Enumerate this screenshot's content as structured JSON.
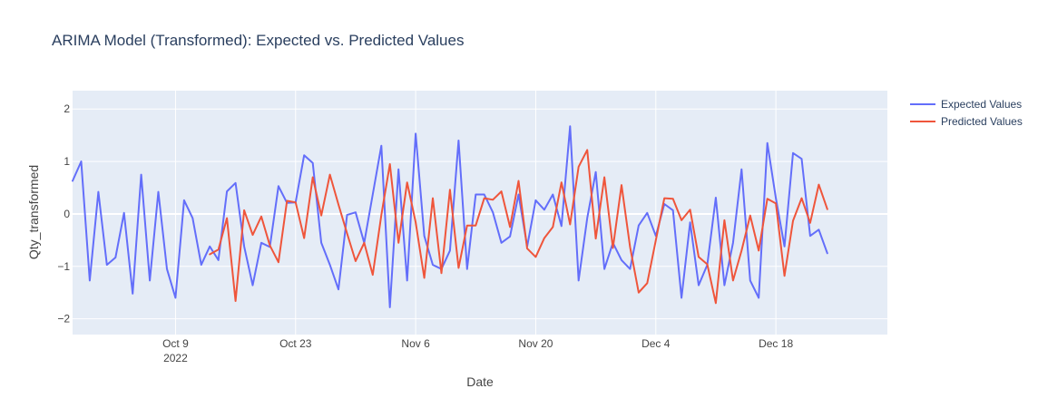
{
  "chart_data": {
    "type": "line",
    "title": "ARIMA Model (Transformed): Expected vs. Predicted Values",
    "xlabel": "Date",
    "ylabel": "Qty_transformed",
    "xlim": [
      "2022-09-27",
      "2022-12-31"
    ],
    "ylim": [
      -2.3,
      2.35
    ],
    "x_ticks": [
      {
        "date": "2022-10-09",
        "label": "Oct 9",
        "sublabel": "2022"
      },
      {
        "date": "2022-10-23",
        "label": "Oct 23",
        "sublabel": ""
      },
      {
        "date": "2022-11-06",
        "label": "Nov 6",
        "sublabel": ""
      },
      {
        "date": "2022-11-20",
        "label": "Nov 20",
        "sublabel": ""
      },
      {
        "date": "2022-12-04",
        "label": "Dec 4",
        "sublabel": ""
      },
      {
        "date": "2022-12-18",
        "label": "Dec 18",
        "sublabel": ""
      }
    ],
    "y_ticks": [
      {
        "value": 2,
        "label": "2"
      },
      {
        "value": 1,
        "label": "1"
      },
      {
        "value": 0,
        "label": "0"
      },
      {
        "value": -1,
        "label": "−1"
      },
      {
        "value": -2,
        "label": "−2"
      }
    ],
    "grid": true,
    "legend_position": "top-right",
    "colors": {
      "plot_bg": "#e5ecf6",
      "grid": "#ffffff",
      "expected": "#636efa",
      "predicted": "#ef553b",
      "title": "#2a3f5f",
      "tick": "#444444"
    },
    "series": [
      {
        "name": "Expected Values",
        "color": "#636efa",
        "points": [
          [
            "2022-09-27",
            0.63
          ],
          [
            "2022-09-28",
            1.0
          ],
          [
            "2022-09-29",
            -1.27
          ],
          [
            "2022-09-30",
            0.42
          ],
          [
            "2022-10-01",
            -0.97
          ],
          [
            "2022-10-02",
            -0.83
          ],
          [
            "2022-10-03",
            0.02
          ],
          [
            "2022-10-04",
            -1.52
          ],
          [
            "2022-10-05",
            0.75
          ],
          [
            "2022-10-06",
            -1.27
          ],
          [
            "2022-10-07",
            0.42
          ],
          [
            "2022-10-08",
            -1.05
          ],
          [
            "2022-10-09",
            -1.6
          ],
          [
            "2022-10-10",
            0.26
          ],
          [
            "2022-10-11",
            -0.08
          ],
          [
            "2022-10-12",
            -0.97
          ],
          [
            "2022-10-13",
            -0.62
          ],
          [
            "2022-10-14",
            -0.88
          ],
          [
            "2022-10-15",
            0.43
          ],
          [
            "2022-10-16",
            0.59
          ],
          [
            "2022-10-17",
            -0.62
          ],
          [
            "2022-10-18",
            -1.36
          ],
          [
            "2022-10-19",
            -0.55
          ],
          [
            "2022-10-20",
            -0.63
          ],
          [
            "2022-10-21",
            0.53
          ],
          [
            "2022-10-22",
            0.21
          ],
          [
            "2022-10-23",
            0.22
          ],
          [
            "2022-10-24",
            1.12
          ],
          [
            "2022-10-25",
            0.97
          ],
          [
            "2022-10-26",
            -0.55
          ],
          [
            "2022-10-27",
            -0.97
          ],
          [
            "2022-10-28",
            -1.44
          ],
          [
            "2022-10-29",
            -0.02
          ],
          [
            "2022-10-30",
            0.03
          ],
          [
            "2022-10-31",
            -0.55
          ],
          [
            "2022-11-01",
            0.37
          ],
          [
            "2022-11-02",
            1.3
          ],
          [
            "2022-11-03",
            -1.78
          ],
          [
            "2022-11-04",
            0.85
          ],
          [
            "2022-11-05",
            -1.27
          ],
          [
            "2022-11-06",
            1.53
          ],
          [
            "2022-11-07",
            -0.42
          ],
          [
            "2022-11-08",
            -0.97
          ],
          [
            "2022-11-09",
            -1.05
          ],
          [
            "2022-11-10",
            -0.7
          ],
          [
            "2022-11-11",
            1.4
          ],
          [
            "2022-11-12",
            -1.05
          ],
          [
            "2022-11-13",
            0.37
          ],
          [
            "2022-11-14",
            0.37
          ],
          [
            "2022-11-15",
            0.03
          ],
          [
            "2022-11-16",
            -0.55
          ],
          [
            "2022-11-17",
            -0.43
          ],
          [
            "2022-11-18",
            0.37
          ],
          [
            "2022-11-19",
            -0.62
          ],
          [
            "2022-11-20",
            0.26
          ],
          [
            "2022-11-21",
            0.08
          ],
          [
            "2022-11-22",
            0.37
          ],
          [
            "2022-11-23",
            -0.23
          ],
          [
            "2022-11-24",
            1.67
          ],
          [
            "2022-11-25",
            -1.27
          ],
          [
            "2022-11-26",
            -0.08
          ],
          [
            "2022-11-27",
            0.8
          ],
          [
            "2022-11-28",
            -1.05
          ],
          [
            "2022-11-29",
            -0.55
          ],
          [
            "2022-11-30",
            -0.88
          ],
          [
            "2022-12-01",
            -1.05
          ],
          [
            "2022-12-02",
            -0.22
          ],
          [
            "2022-12-03",
            0.02
          ],
          [
            "2022-12-04",
            -0.42
          ],
          [
            "2022-12-05",
            0.19
          ],
          [
            "2022-12-06",
            0.07
          ],
          [
            "2022-12-07",
            -1.6
          ],
          [
            "2022-12-08",
            -0.16
          ],
          [
            "2022-12-09",
            -1.36
          ],
          [
            "2022-12-10",
            -0.97
          ],
          [
            "2022-12-11",
            0.31
          ],
          [
            "2022-12-12",
            -1.36
          ],
          [
            "2022-12-13",
            -0.55
          ],
          [
            "2022-12-14",
            0.85
          ],
          [
            "2022-12-15",
            -1.27
          ],
          [
            "2022-12-16",
            -1.6
          ],
          [
            "2022-12-17",
            1.35
          ],
          [
            "2022-12-18",
            0.3
          ],
          [
            "2022-12-19",
            -0.62
          ],
          [
            "2022-12-20",
            1.16
          ],
          [
            "2022-12-21",
            1.05
          ],
          [
            "2022-12-22",
            -0.42
          ],
          [
            "2022-12-23",
            -0.3
          ],
          [
            "2022-12-24",
            -0.75
          ]
        ]
      },
      {
        "name": "Predicted Values",
        "color": "#ef553b",
        "points": [
          [
            "2022-10-13",
            -0.77
          ],
          [
            "2022-10-14",
            -0.68
          ],
          [
            "2022-10-15",
            -0.08
          ],
          [
            "2022-10-16",
            -1.66
          ],
          [
            "2022-10-17",
            0.07
          ],
          [
            "2022-10-18",
            -0.4
          ],
          [
            "2022-10-19",
            -0.05
          ],
          [
            "2022-10-20",
            -0.6
          ],
          [
            "2022-10-21",
            -0.92
          ],
          [
            "2022-10-22",
            0.25
          ],
          [
            "2022-10-23",
            0.22
          ],
          [
            "2022-10-24",
            -0.46
          ],
          [
            "2022-10-25",
            0.7
          ],
          [
            "2022-10-26",
            -0.03
          ],
          [
            "2022-10-27",
            0.75
          ],
          [
            "2022-10-28",
            0.18
          ],
          [
            "2022-10-29",
            -0.37
          ],
          [
            "2022-10-30",
            -0.9
          ],
          [
            "2022-10-31",
            -0.55
          ],
          [
            "2022-11-01",
            -1.16
          ],
          [
            "2022-11-02",
            -0.02
          ],
          [
            "2022-11-03",
            0.95
          ],
          [
            "2022-11-04",
            -0.55
          ],
          [
            "2022-11-05",
            0.6
          ],
          [
            "2022-11-06",
            -0.16
          ],
          [
            "2022-11-07",
            -1.22
          ],
          [
            "2022-11-08",
            0.3
          ],
          [
            "2022-11-09",
            -1.13
          ],
          [
            "2022-11-10",
            0.46
          ],
          [
            "2022-11-11",
            -1.03
          ],
          [
            "2022-11-12",
            -0.22
          ],
          [
            "2022-11-13",
            -0.22
          ],
          [
            "2022-11-14",
            0.3
          ],
          [
            "2022-11-15",
            0.27
          ],
          [
            "2022-11-16",
            0.43
          ],
          [
            "2022-11-17",
            -0.25
          ],
          [
            "2022-11-18",
            0.63
          ],
          [
            "2022-11-19",
            -0.66
          ],
          [
            "2022-11-20",
            -0.82
          ],
          [
            "2022-11-21",
            -0.46
          ],
          [
            "2022-11-22",
            -0.25
          ],
          [
            "2022-11-23",
            0.6
          ],
          [
            "2022-11-24",
            -0.2
          ],
          [
            "2022-11-25",
            0.9
          ],
          [
            "2022-11-26",
            1.22
          ],
          [
            "2022-11-27",
            -0.47
          ],
          [
            "2022-11-28",
            0.7
          ],
          [
            "2022-11-29",
            -0.65
          ],
          [
            "2022-11-30",
            0.55
          ],
          [
            "2022-12-01",
            -0.63
          ],
          [
            "2022-12-02",
            -1.5
          ],
          [
            "2022-12-03",
            -1.32
          ],
          [
            "2022-12-04",
            -0.5
          ],
          [
            "2022-12-05",
            0.3
          ],
          [
            "2022-12-06",
            0.29
          ],
          [
            "2022-12-07",
            -0.12
          ],
          [
            "2022-12-08",
            0.08
          ],
          [
            "2022-12-09",
            -0.82
          ],
          [
            "2022-12-10",
            -0.96
          ],
          [
            "2022-12-11",
            -1.7
          ],
          [
            "2022-12-12",
            -0.12
          ],
          [
            "2022-12-13",
            -1.27
          ],
          [
            "2022-12-14",
            -0.7
          ],
          [
            "2022-12-15",
            -0.03
          ],
          [
            "2022-12-16",
            -0.7
          ],
          [
            "2022-12-17",
            0.29
          ],
          [
            "2022-12-18",
            0.2
          ],
          [
            "2022-12-19",
            -1.18
          ],
          [
            "2022-12-20",
            -0.13
          ],
          [
            "2022-12-21",
            0.3
          ],
          [
            "2022-12-22",
            -0.17
          ],
          [
            "2022-12-23",
            0.56
          ],
          [
            "2022-12-24",
            0.09
          ]
        ]
      }
    ]
  }
}
